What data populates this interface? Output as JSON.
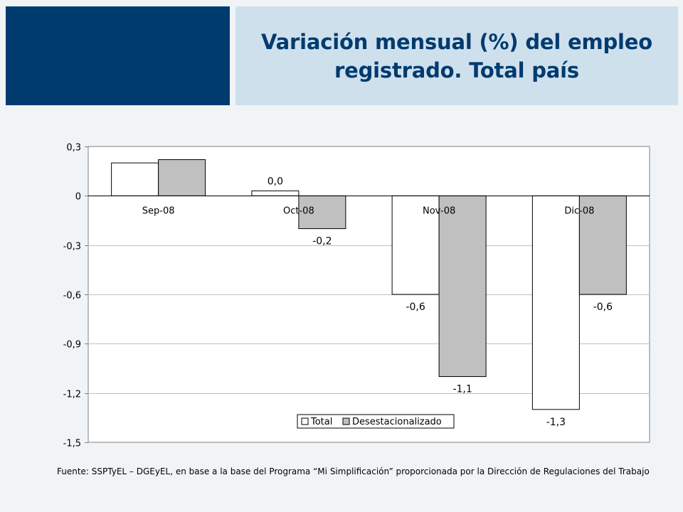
{
  "header": {
    "title_line1": "Variación mensual (%) del empleo",
    "title_line2": "registrado. Total país"
  },
  "colors": {
    "navy": "#003b6f",
    "light_blue": "#cfe0ed",
    "total_fill": "#ffffff",
    "desest_fill": "#c0c0c0"
  },
  "chart_data": {
    "type": "bar",
    "title": "",
    "xlabel": "",
    "ylabel": "",
    "categories": [
      "Sep-08",
      "Oct-08",
      "Nov-08",
      "Dic-08"
    ],
    "series": [
      {
        "name": "Total",
        "values": [
          0.2,
          0.03,
          -0.6,
          -1.3
        ],
        "labels": [
          "",
          "0,0",
          "-0,6",
          "-1,3"
        ]
      },
      {
        "name": "Desestacionalizado",
        "values": [
          0.22,
          -0.2,
          -1.1,
          -0.6
        ],
        "labels": [
          "",
          "-0,2",
          "-1,1",
          "-0,6"
        ]
      }
    ],
    "ylim": [
      -1.5,
      0.3
    ],
    "yticks": [
      0.3,
      0,
      -0.3,
      -0.6,
      -0.9,
      -1.2,
      -1.5
    ],
    "ytick_labels": [
      "0,3",
      "0",
      "-0,3",
      "-0,6",
      "-0,9",
      "-1,2",
      "-1,5"
    ],
    "grid": true,
    "legend_position": "bottom-center"
  },
  "footer": {
    "source": "Fuente: SSPTyEL – DGEyEL, en base a la base del Programa “Mi Simplificación” proporcionada por la Dirección de Regulaciones del Trabajo"
  }
}
